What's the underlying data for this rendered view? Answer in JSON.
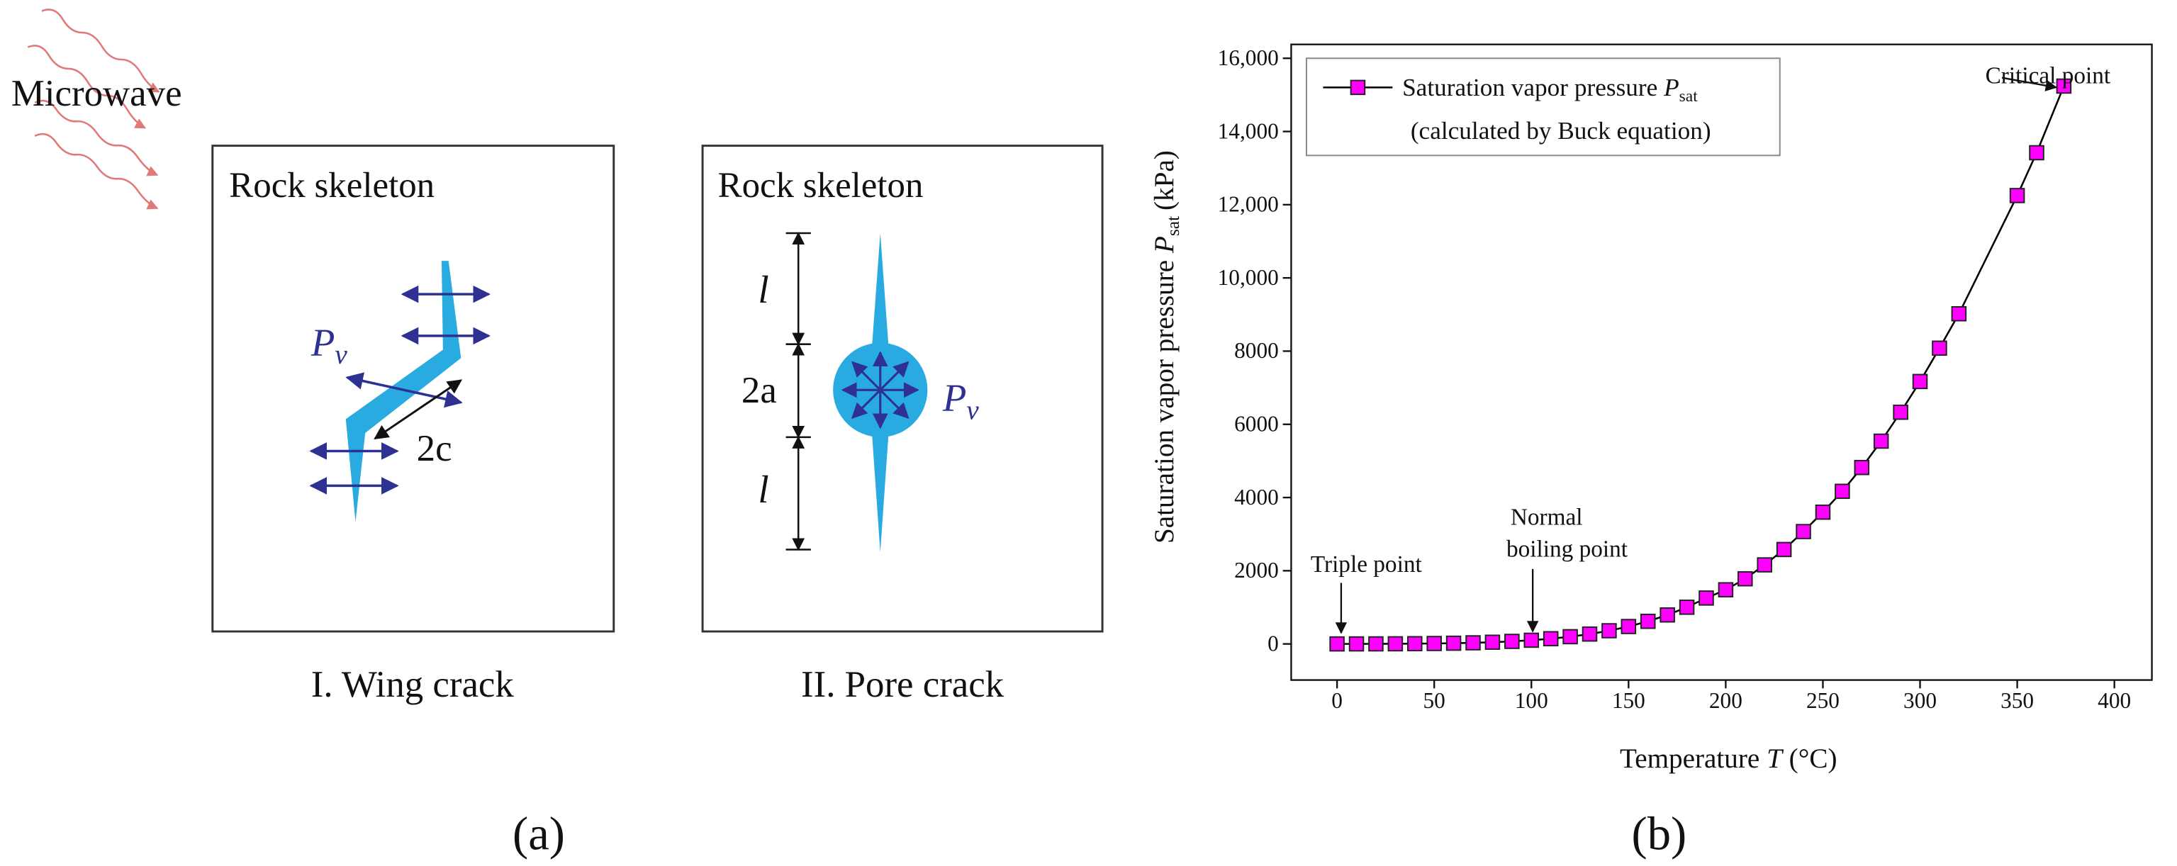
{
  "diagram": {
    "microwave": "Microwave",
    "panels": [
      {
        "title": "Rock skeleton",
        "caption": "I. Wing crack",
        "pv_symbol": "P",
        "pv_subscript": "v",
        "length_label": "2c"
      },
      {
        "title": "Rock skeleton",
        "caption": "II. Pore crack",
        "pv_symbol": "P",
        "pv_subscript": "v",
        "radius_label": "2a",
        "tip_label_top": "l",
        "tip_label_bottom": "l"
      }
    ],
    "panel_label": "(a)"
  },
  "chart_data": {
    "type": "line",
    "panel_label": "(b)",
    "x_label": {
      "text": "Temperature",
      "symbol": "T",
      "unit": "(°C)"
    },
    "y_label": {
      "text": "Saturation vapor pressure",
      "symbol": "P",
      "subscript": "sat",
      "unit": "(kPa)"
    },
    "x": [
      0,
      10,
      20,
      30,
      40,
      50,
      60,
      70,
      80,
      90,
      100,
      110,
      120,
      130,
      140,
      150,
      160,
      170,
      180,
      190,
      200,
      210,
      220,
      230,
      240,
      250,
      260,
      270,
      280,
      290,
      300,
      310,
      320,
      350,
      360,
      374
    ],
    "series": [
      {
        "name": "Saturation vapor pressure",
        "name_symbol": "P",
        "name_subscript": "sat",
        "name_note": "(calculated by Buck equation)",
        "color": "#ff00ff",
        "line_color": "#000000",
        "values": [
          0.6,
          1.2,
          2.3,
          4.2,
          7.4,
          12,
          20,
          31,
          47,
          70,
          101,
          143,
          198,
          270,
          361,
          476,
          618,
          792,
          1003,
          1254,
          1480,
          1780,
          2160,
          2580,
          3070,
          3600,
          4170,
          4820,
          5540,
          6330,
          7170,
          8080,
          9020,
          12250,
          13420,
          15240
        ]
      }
    ],
    "annotations": [
      {
        "text": "Critical point"
      },
      {
        "text": "Triple point"
      },
      {
        "text": "Normal"
      },
      {
        "text": "boiling point"
      }
    ],
    "xlim": [
      -23.6,
      419.3
    ],
    "ylim": [
      -986,
      16379
    ],
    "xticks": [
      0,
      50,
      100,
      150,
      200,
      250,
      300,
      350,
      400
    ],
    "yticks": [
      0,
      2000,
      4000,
      6000,
      8000,
      {
        "value": 10000,
        "label": "10,000"
      },
      {
        "value": 12000,
        "label": "12,000"
      },
      {
        "value": 14000,
        "label": "14,000"
      },
      {
        "value": 16000,
        "label": "16,000"
      }
    ],
    "legend": "upper left",
    "grid": false
  }
}
